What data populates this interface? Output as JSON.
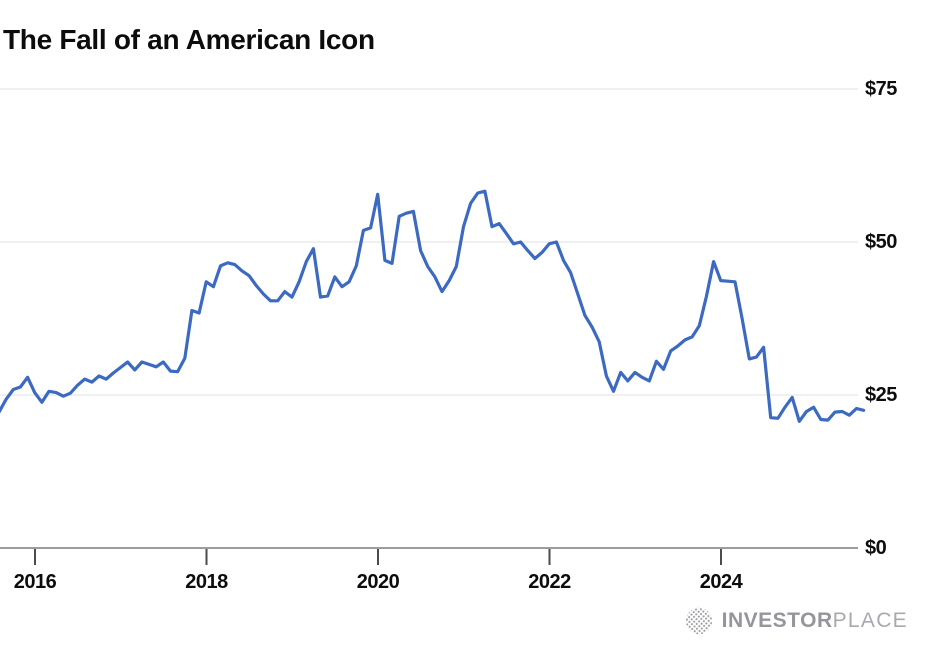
{
  "title": "The Fall of an American Icon",
  "branding": {
    "logo_icon": "dotted-globe-icon",
    "logo_text_bold": "INVESTOR",
    "logo_text_light": "PLACE"
  },
  "colors": {
    "line": "#3d6ac1",
    "grid": "#e8e8ea",
    "axis": "#9b9ba1",
    "tick": "#4a4a4f",
    "label": "#0d0d0d",
    "logo": "#9a9aa0"
  },
  "chart_data": {
    "type": "line",
    "title": "The Fall of an American Icon",
    "xlabel": "",
    "ylabel": "",
    "ylim": [
      0,
      75
    ],
    "xlim": [
      2015.58,
      2025.75
    ],
    "grid": "horizontal-light",
    "y_axis_side": "right",
    "legend": "none",
    "y_ticks": [
      {
        "value": 75,
        "label": "$75"
      },
      {
        "value": 50,
        "label": "$50"
      },
      {
        "value": 25,
        "label": "$25"
      },
      {
        "value": 0,
        "label": "$0"
      }
    ],
    "x_ticks": [
      {
        "value": 2016,
        "label": "2016"
      },
      {
        "value": 2018,
        "label": "2018"
      },
      {
        "value": 2020,
        "label": "2020"
      },
      {
        "value": 2022,
        "label": "2022"
      },
      {
        "value": 2024,
        "label": "2024"
      }
    ],
    "series_frequency": "monthly",
    "x_start": 2015.58,
    "x_step": 0.083333,
    "values": [
      22.2,
      24.3,
      25.9,
      26.3,
      27.9,
      25.4,
      23.8,
      25.6,
      25.4,
      24.8,
      25.3,
      26.6,
      27.6,
      27.1,
      28.1,
      27.6,
      28.6,
      29.5,
      30.4,
      29.1,
      30.4,
      30.0,
      29.6,
      30.4,
      28.9,
      28.8,
      31.0,
      38.8,
      38.4,
      43.5,
      42.7,
      46.1,
      46.6,
      46.3,
      45.3,
      44.5,
      42.9,
      41.5,
      40.4,
      40.4,
      41.9,
      41.0,
      43.5,
      46.8,
      48.9,
      41.0,
      41.2,
      44.3,
      42.7,
      43.5,
      46.1,
      51.9,
      52.3,
      57.8,
      47.0,
      46.5,
      54.2,
      54.7,
      55.0,
      48.6,
      46.0,
      44.3,
      41.9,
      43.7,
      46.0,
      52.5,
      56.3,
      58.0,
      58.3,
      52.5,
      53.0,
      51.4,
      49.7,
      50.0,
      48.6,
      47.3,
      48.3,
      49.7,
      50.0,
      47.0,
      45.0,
      41.5,
      38.0,
      36.1,
      33.7,
      28.1,
      25.6,
      28.7,
      27.3,
      28.7,
      27.9,
      27.3,
      30.5,
      29.2,
      32.2,
      33.0,
      34.0,
      34.5,
      36.3,
      41.1,
      46.8,
      43.7,
      43.6,
      43.5,
      37.5,
      30.9,
      31.2,
      32.8,
      21.3,
      21.2,
      23.0,
      24.6,
      20.7,
      22.3,
      23.0,
      21.0,
      20.9,
      22.2,
      22.3,
      21.7,
      22.8,
      22.5
    ]
  }
}
